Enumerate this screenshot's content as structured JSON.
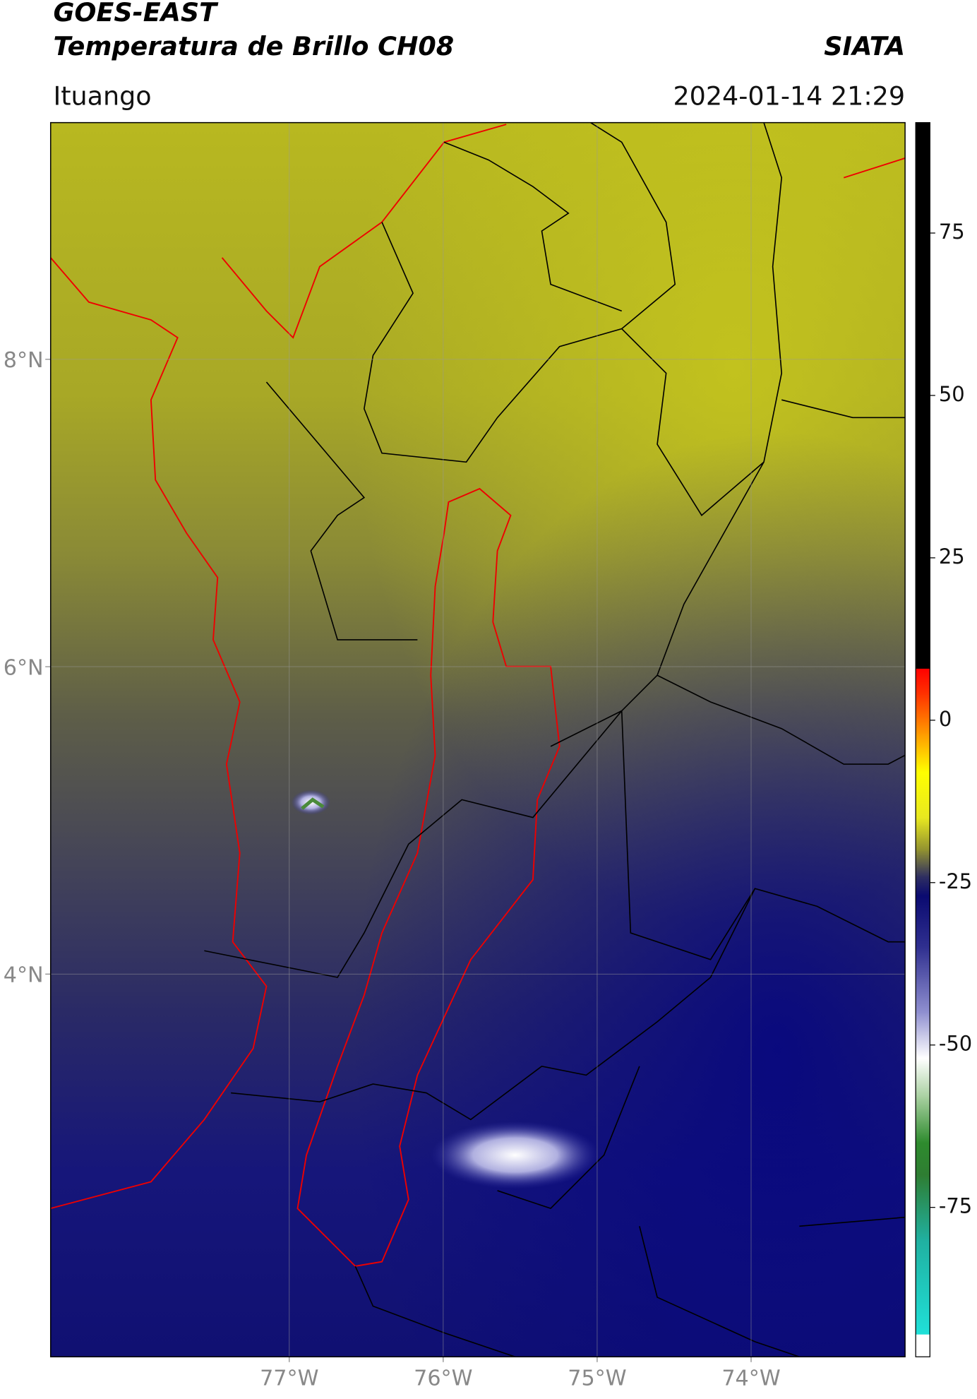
{
  "header": {
    "title": "GOES-EAST",
    "subtitle": "Temperatura de Brillo CH08",
    "source": "SIATA",
    "location": "Ituango",
    "datetime": "2024-01-14 21:29"
  },
  "map": {
    "xlim": [
      -78.55,
      -73.0
    ],
    "ylim": [
      1.51,
      9.54
    ],
    "xticks": [
      {
        "value": -77,
        "label": "77°W"
      },
      {
        "value": -76,
        "label": "76°W"
      },
      {
        "value": -75,
        "label": "75°W"
      },
      {
        "value": -74,
        "label": "74°W"
      }
    ],
    "yticks": [
      {
        "value": 8,
        "label": "8°N"
      },
      {
        "value": 6,
        "label": "6°N"
      },
      {
        "value": 4,
        "label": "4°N"
      }
    ],
    "grid": true
  },
  "colorbar": {
    "lim": [
      -98,
      92
    ],
    "ticks": [
      75,
      50,
      25,
      0,
      -25,
      -50,
      -75
    ],
    "stops": [
      {
        "value": -98,
        "color": "#ffffff"
      },
      {
        "value": -94.5,
        "color": "#ffffff"
      },
      {
        "value": -94.5,
        "color": "#20e0d8"
      },
      {
        "value": -80,
        "color": "#20b0a0"
      },
      {
        "value": -70,
        "color": "#2e7d32"
      },
      {
        "value": -65,
        "color": "#2e8b2e"
      },
      {
        "value": -58,
        "color": "#a8d0a0"
      },
      {
        "value": -52,
        "color": "#ffffff"
      },
      {
        "value": -45,
        "color": "#9090d0"
      },
      {
        "value": -35,
        "color": "#303090"
      },
      {
        "value": -27,
        "color": "#0a0a70"
      },
      {
        "value": -24,
        "color": "#303060"
      },
      {
        "value": -20,
        "color": "#909030"
      },
      {
        "value": -15,
        "color": "#e8e820"
      },
      {
        "value": -8,
        "color": "#ffff00"
      },
      {
        "value": -2,
        "color": "#ff9900"
      },
      {
        "value": 4,
        "color": "#ff3300"
      },
      {
        "value": 8,
        "color": "#ff0000"
      },
      {
        "value": 8,
        "color": "#000000"
      },
      {
        "value": 92,
        "color": "#000000"
      }
    ]
  }
}
